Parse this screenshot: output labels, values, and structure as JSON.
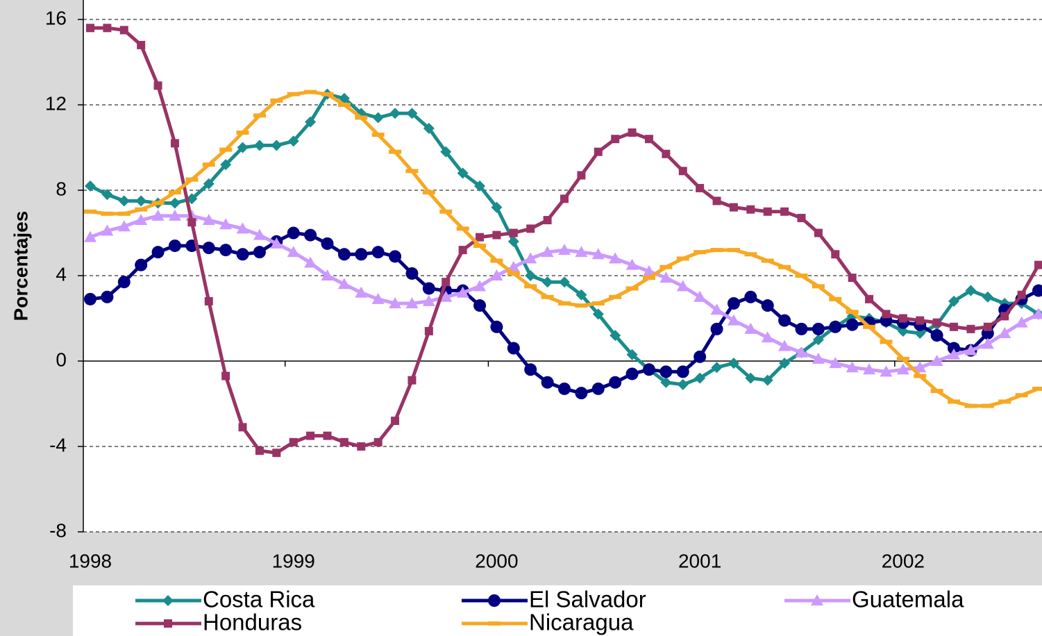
{
  "chart_data": {
    "type": "line",
    "y_label": "Porcentajes",
    "categories": [
      "1998",
      null,
      null,
      null,
      null,
      null,
      null,
      null,
      null,
      null,
      null,
      null,
      "1999",
      null,
      null,
      null,
      null,
      null,
      null,
      null,
      null,
      null,
      null,
      null,
      "2000",
      null,
      null,
      null,
      null,
      null,
      null,
      null,
      null,
      null,
      null,
      null,
      "2001",
      null,
      null,
      null,
      null,
      null,
      null,
      null,
      null,
      null,
      null,
      null,
      "2002",
      null,
      null,
      null,
      null,
      null,
      null,
      null,
      null
    ],
    "ylim": [
      -8,
      16
    ],
    "yticks": [
      -8,
      -4,
      0,
      4,
      8,
      12,
      16
    ],
    "grid": true,
    "legend": "bottom",
    "series": [
      {
        "name": "Costa Rica",
        "color": "#1a8c8c",
        "marker": "diamond",
        "values": [
          8.2,
          7.8,
          7.5,
          7.5,
          7.4,
          7.4,
          7.6,
          8.3,
          9.2,
          10.0,
          10.1,
          10.1,
          10.3,
          11.2,
          12.5,
          12.3,
          11.6,
          11.4,
          11.6,
          11.6,
          10.9,
          9.8,
          8.8,
          8.2,
          7.2,
          5.6,
          4.0,
          3.7,
          3.7,
          3.1,
          2.2,
          1.2,
          0.3,
          -0.4,
          -1.0,
          -1.1,
          -0.8,
          -0.3,
          -0.1,
          -0.8,
          -0.9,
          -0.1,
          0.4,
          1.0,
          1.6,
          2.1,
          2.0,
          1.8,
          1.4,
          1.3,
          1.7,
          2.8,
          3.3,
          3.0,
          2.7,
          2.7,
          2.2
        ]
      },
      {
        "name": "El Salvador",
        "color": "#000080",
        "marker": "circle",
        "values": [
          2.9,
          3.0,
          3.7,
          4.5,
          5.1,
          5.4,
          5.4,
          5.3,
          5.2,
          5.0,
          5.1,
          5.6,
          6.0,
          5.9,
          5.5,
          5.0,
          5.0,
          5.1,
          4.9,
          4.1,
          3.4,
          3.3,
          3.3,
          2.6,
          1.6,
          0.6,
          -0.4,
          -1.0,
          -1.3,
          -1.5,
          -1.3,
          -1.0,
          -0.6,
          -0.4,
          -0.5,
          -0.5,
          0.2,
          1.5,
          2.7,
          3.0,
          2.6,
          1.9,
          1.5,
          1.5,
          1.6,
          1.7,
          1.8,
          1.9,
          1.8,
          1.7,
          1.2,
          0.6,
          0.5,
          1.3,
          2.4,
          2.9,
          3.3
        ]
      },
      {
        "name": "Guatemala",
        "color": "#cc99ff",
        "marker": "triangle",
        "values": [
          5.8,
          6.1,
          6.3,
          6.6,
          6.8,
          6.8,
          6.8,
          6.6,
          6.4,
          6.2,
          5.9,
          5.5,
          5.1,
          4.6,
          4.0,
          3.6,
          3.2,
          2.9,
          2.7,
          2.7,
          2.8,
          3.0,
          3.2,
          3.5,
          4.0,
          4.4,
          4.8,
          5.1,
          5.2,
          5.1,
          5.0,
          4.8,
          4.5,
          4.2,
          3.9,
          3.5,
          3.0,
          2.4,
          1.9,
          1.5,
          1.1,
          0.7,
          0.4,
          0.1,
          -0.1,
          -0.3,
          -0.4,
          -0.5,
          -0.4,
          -0.3,
          0.0,
          0.3,
          0.5,
          0.8,
          1.3,
          1.8,
          2.2
        ]
      },
      {
        "name": "Honduras",
        "color": "#993366",
        "marker": "square",
        "values": [
          15.6,
          15.6,
          15.5,
          14.8,
          12.9,
          10.2,
          6.5,
          2.8,
          -0.7,
          -3.1,
          -4.2,
          -4.3,
          -3.8,
          -3.5,
          -3.5,
          -3.8,
          -4.0,
          -3.8,
          -2.8,
          -0.9,
          1.4,
          3.7,
          5.2,
          5.8,
          5.9,
          6.0,
          6.2,
          6.6,
          7.6,
          8.7,
          9.8,
          10.4,
          10.7,
          10.4,
          9.7,
          8.9,
          8.1,
          7.5,
          7.2,
          7.1,
          7.0,
          7.0,
          6.7,
          6.0,
          5.0,
          3.9,
          2.9,
          2.2,
          2.0,
          1.9,
          1.8,
          1.6,
          1.5,
          1.6,
          2.1,
          3.1,
          4.5
        ]
      },
      {
        "name": "Nicaragua",
        "color": "#f7a823",
        "marker": "dash",
        "values": [
          7.0,
          6.9,
          6.9,
          7.1,
          7.4,
          7.9,
          8.5,
          9.2,
          9.9,
          10.7,
          11.5,
          12.2,
          12.5,
          12.6,
          12.5,
          12.0,
          11.4,
          10.6,
          9.8,
          8.9,
          7.9,
          7.0,
          6.2,
          5.4,
          4.7,
          4.1,
          3.5,
          3.0,
          2.7,
          2.6,
          2.7,
          3.0,
          3.4,
          3.9,
          4.4,
          4.8,
          5.1,
          5.2,
          5.2,
          5.0,
          4.7,
          4.4,
          4.0,
          3.5,
          2.9,
          2.3,
          1.6,
          0.9,
          0.1,
          -0.7,
          -1.4,
          -1.9,
          -2.1,
          -2.1,
          -1.9,
          -1.6,
          -1.3
        ]
      }
    ]
  }
}
